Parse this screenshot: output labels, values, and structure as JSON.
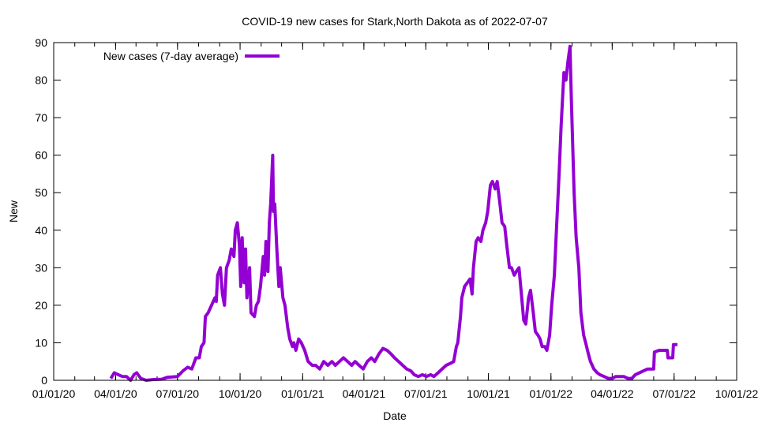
{
  "chart_data": {
    "type": "line",
    "title": "COVID-19 new cases for Stark,North Dakota as of 2022-07-07",
    "xlabel": "Date",
    "ylabel": "New",
    "x_unit": "days since 2020-01-01",
    "xlim": [
      0,
      1004
    ],
    "ylim": [
      0,
      90
    ],
    "yticks": [
      0,
      10,
      20,
      30,
      40,
      50,
      60,
      70,
      80,
      90
    ],
    "xticks": [
      {
        "day": 0,
        "label": "01/01/20"
      },
      {
        "day": 91,
        "label": "04/01/20"
      },
      {
        "day": 182,
        "label": "07/01/20"
      },
      {
        "day": 274,
        "label": "10/01/20"
      },
      {
        "day": 366,
        "label": "01/01/21"
      },
      {
        "day": 456,
        "label": "04/01/21"
      },
      {
        "day": 547,
        "label": "07/01/21"
      },
      {
        "day": 639,
        "label": "10/01/21"
      },
      {
        "day": 731,
        "label": "01/01/22"
      },
      {
        "day": 821,
        "label": "04/01/22"
      },
      {
        "day": 912,
        "label": "07/01/22"
      },
      {
        "day": 1004,
        "label": "10/01/22"
      }
    ],
    "grid": false,
    "legend": {
      "position": "top-left",
      "entries": [
        "New cases (7-day average)"
      ]
    },
    "series": [
      {
        "name": "New cases (7-day average)",
        "color": "#9400d3",
        "points": [
          [
            84,
            0.5
          ],
          [
            89,
            2
          ],
          [
            95,
            1.5
          ],
          [
            101,
            1
          ],
          [
            107,
            1
          ],
          [
            113,
            0
          ],
          [
            118,
            1.5
          ],
          [
            122,
            2
          ],
          [
            128,
            0.5
          ],
          [
            136,
            0
          ],
          [
            147,
            0.2
          ],
          [
            159,
            0.3
          ],
          [
            167,
            0.8
          ],
          [
            182,
            1
          ],
          [
            190,
            2.5
          ],
          [
            197,
            3.5
          ],
          [
            203,
            3
          ],
          [
            209,
            6
          ],
          [
            214,
            6
          ],
          [
            217,
            9
          ],
          [
            221,
            10
          ],
          [
            223,
            17
          ],
          [
            227,
            18
          ],
          [
            232,
            20
          ],
          [
            237,
            22
          ],
          [
            239,
            21
          ],
          [
            241,
            28
          ],
          [
            245,
            30
          ],
          [
            248,
            23
          ],
          [
            251,
            20
          ],
          [
            254,
            30
          ],
          [
            258,
            32
          ],
          [
            261,
            35
          ],
          [
            265,
            33
          ],
          [
            267,
            40
          ],
          [
            270,
            42
          ],
          [
            273,
            36
          ],
          [
            275,
            25
          ],
          [
            277,
            38
          ],
          [
            280,
            26
          ],
          [
            282,
            35
          ],
          [
            284,
            22
          ],
          [
            288,
            30
          ],
          [
            290,
            18
          ],
          [
            295,
            17
          ],
          [
            298,
            20
          ],
          [
            301,
            21
          ],
          [
            304,
            25
          ],
          [
            308,
            33
          ],
          [
            310,
            28
          ],
          [
            312,
            37
          ],
          [
            315,
            29
          ],
          [
            317,
            42
          ],
          [
            319,
            47
          ],
          [
            322,
            60
          ],
          [
            323,
            45
          ],
          [
            325,
            47
          ],
          [
            328,
            35
          ],
          [
            331,
            25
          ],
          [
            333,
            30
          ],
          [
            337,
            22
          ],
          [
            340,
            20
          ],
          [
            344,
            14
          ],
          [
            347,
            11
          ],
          [
            351,
            9
          ],
          [
            353,
            10
          ],
          [
            356,
            8
          ],
          [
            360,
            11
          ],
          [
            364,
            10
          ],
          [
            369,
            8
          ],
          [
            374,
            5
          ],
          [
            380,
            4
          ],
          [
            385,
            4
          ],
          [
            391,
            3
          ],
          [
            397,
            5
          ],
          [
            403,
            4
          ],
          [
            409,
            5
          ],
          [
            414,
            4
          ],
          [
            420,
            5
          ],
          [
            426,
            6
          ],
          [
            432,
            5
          ],
          [
            438,
            4
          ],
          [
            443,
            5
          ],
          [
            449,
            4
          ],
          [
            455,
            3
          ],
          [
            461,
            5
          ],
          [
            467,
            6
          ],
          [
            472,
            5
          ],
          [
            478,
            7
          ],
          [
            484,
            8.5
          ],
          [
            490,
            8
          ],
          [
            496,
            7
          ],
          [
            501,
            6
          ],
          [
            507,
            5
          ],
          [
            513,
            4
          ],
          [
            519,
            3
          ],
          [
            525,
            2.5
          ],
          [
            530,
            1.5
          ],
          [
            536,
            1
          ],
          [
            542,
            1.5
          ],
          [
            548,
            1
          ],
          [
            554,
            1.5
          ],
          [
            559,
            1
          ],
          [
            565,
            2
          ],
          [
            571,
            3
          ],
          [
            577,
            4
          ],
          [
            583,
            4.5
          ],
          [
            588,
            5
          ],
          [
            592,
            9
          ],
          [
            594,
            10
          ],
          [
            598,
            17
          ],
          [
            600,
            22
          ],
          [
            604,
            25
          ],
          [
            608,
            26
          ],
          [
            612,
            27
          ],
          [
            615,
            23
          ],
          [
            617,
            30
          ],
          [
            621,
            37
          ],
          [
            624,
            38
          ],
          [
            628,
            37
          ],
          [
            631,
            40
          ],
          [
            635,
            42
          ],
          [
            638,
            45
          ],
          [
            642,
            52
          ],
          [
            645,
            53
          ],
          [
            649,
            51
          ],
          [
            652,
            53
          ],
          [
            656,
            47
          ],
          [
            659,
            42
          ],
          [
            663,
            41
          ],
          [
            666,
            36
          ],
          [
            670,
            30
          ],
          [
            673,
            30
          ],
          [
            677,
            28
          ],
          [
            680,
            29
          ],
          [
            684,
            30
          ],
          [
            687,
            24
          ],
          [
            691,
            16
          ],
          [
            694,
            15
          ],
          [
            698,
            22
          ],
          [
            701,
            24
          ],
          [
            705,
            18
          ],
          [
            708,
            13
          ],
          [
            712,
            12
          ],
          [
            715,
            11
          ],
          [
            718,
            9
          ],
          [
            722,
            9
          ],
          [
            725,
            8
          ],
          [
            729,
            12
          ],
          [
            732,
            20
          ],
          [
            736,
            28
          ],
          [
            739,
            40
          ],
          [
            743,
            55
          ],
          [
            746,
            68
          ],
          [
            750,
            82
          ],
          [
            753,
            80
          ],
          [
            756,
            85
          ],
          [
            759,
            89
          ],
          [
            761,
            75
          ],
          [
            765,
            50
          ],
          [
            768,
            38
          ],
          [
            772,
            30
          ],
          [
            775,
            18
          ],
          [
            779,
            12
          ],
          [
            782,
            10
          ],
          [
            786,
            7
          ],
          [
            789,
            5
          ],
          [
            794,
            3
          ],
          [
            799,
            2
          ],
          [
            803,
            1.5
          ],
          [
            809,
            1
          ],
          [
            815,
            0.5
          ],
          [
            821,
            0.5
          ],
          [
            826,
            1
          ],
          [
            832,
            1
          ],
          [
            838,
            1
          ],
          [
            844,
            0.5
          ],
          [
            850,
            0.5
          ],
          [
            855,
            1.5
          ],
          [
            861,
            2
          ],
          [
            867,
            2.5
          ],
          [
            873,
            3
          ],
          [
            879,
            3
          ],
          [
            882,
            3
          ],
          [
            883,
            7.5
          ],
          [
            890,
            8
          ],
          [
            896,
            8
          ],
          [
            902,
            8
          ],
          [
            903,
            6
          ],
          [
            910,
            6
          ],
          [
            911,
            9.5
          ],
          [
            917,
            9.5
          ]
        ]
      }
    ]
  }
}
